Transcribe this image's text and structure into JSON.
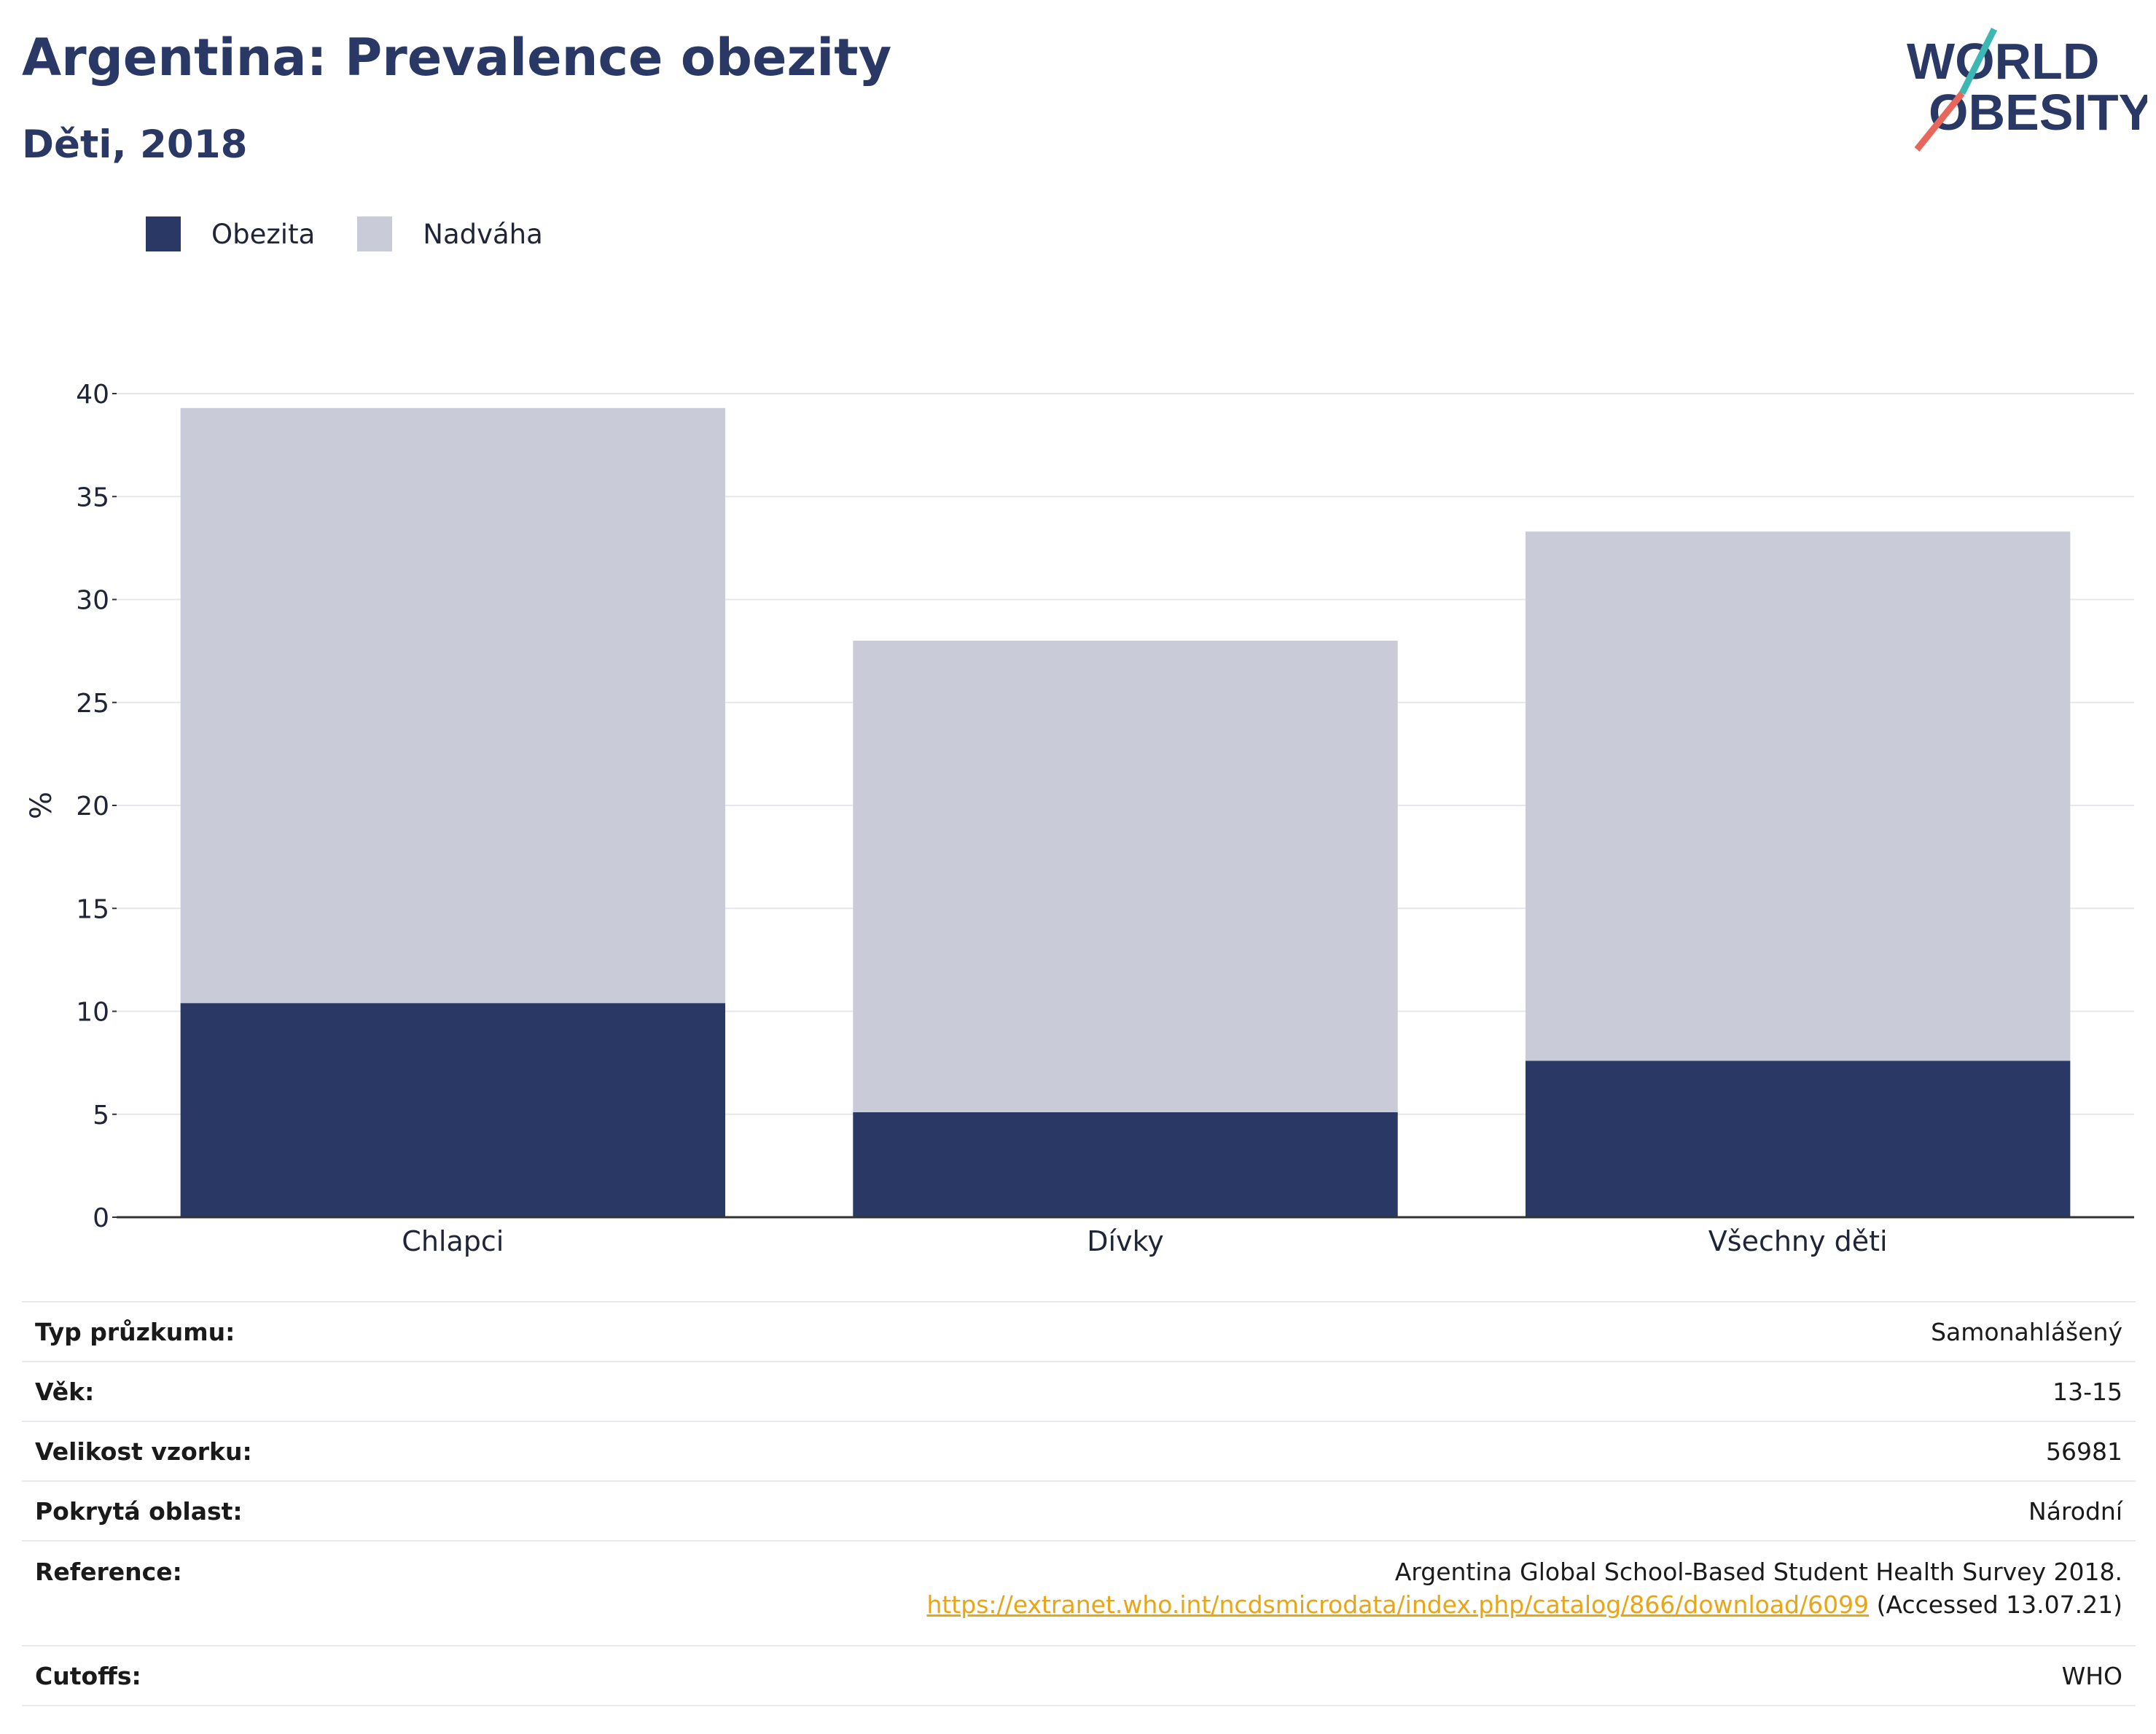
{
  "header": {
    "title": "Argentina: Prevalence obezity",
    "subtitle": "Děti, 2018",
    "logo_line1": "WORLD",
    "logo_line2": "OBESITY"
  },
  "colors": {
    "obesity": "#2a3865",
    "overweight": "#c9ccd8",
    "title": "#2a3865",
    "link": "#e8a516"
  },
  "chart_data": {
    "type": "bar",
    "stacked": true,
    "categories": [
      "Chlapci",
      "Dívky",
      "Všechny děti"
    ],
    "series": [
      {
        "name": "Obezita",
        "values": [
          10.4,
          5.1,
          7.6
        ],
        "color": "#2a3865"
      },
      {
        "name": "Nadváha",
        "values": [
          28.9,
          22.9,
          25.7
        ],
        "color": "#c9ccd8"
      }
    ],
    "ylabel": "%",
    "xlabel": "",
    "ylim": [
      0,
      40
    ],
    "yticks": [
      0,
      5,
      10,
      15,
      20,
      25,
      30,
      35,
      40
    ],
    "grid": true,
    "legend": "top-left"
  },
  "table": {
    "survey_type_label": "Typ průzkumu:",
    "survey_type_value": "Samonahlášený",
    "age_label": "Věk:",
    "age_value": "13-15",
    "sample_label": "Velikost vzorku:",
    "sample_value": "56981",
    "area_label": "Pokrytá oblast:",
    "area_value": "Národní",
    "reference_label": "Reference:",
    "reference_text": "Argentina Global School-Based Student Health Survey 2018.",
    "reference_link": "https://extranet.who.int/ncdsmicrodata/index.php/catalog/866/download/6099",
    "reference_accessed": "(Accessed 13.07.21)",
    "cutoffs_label": "Cutoffs:",
    "cutoffs_value": "WHO"
  }
}
